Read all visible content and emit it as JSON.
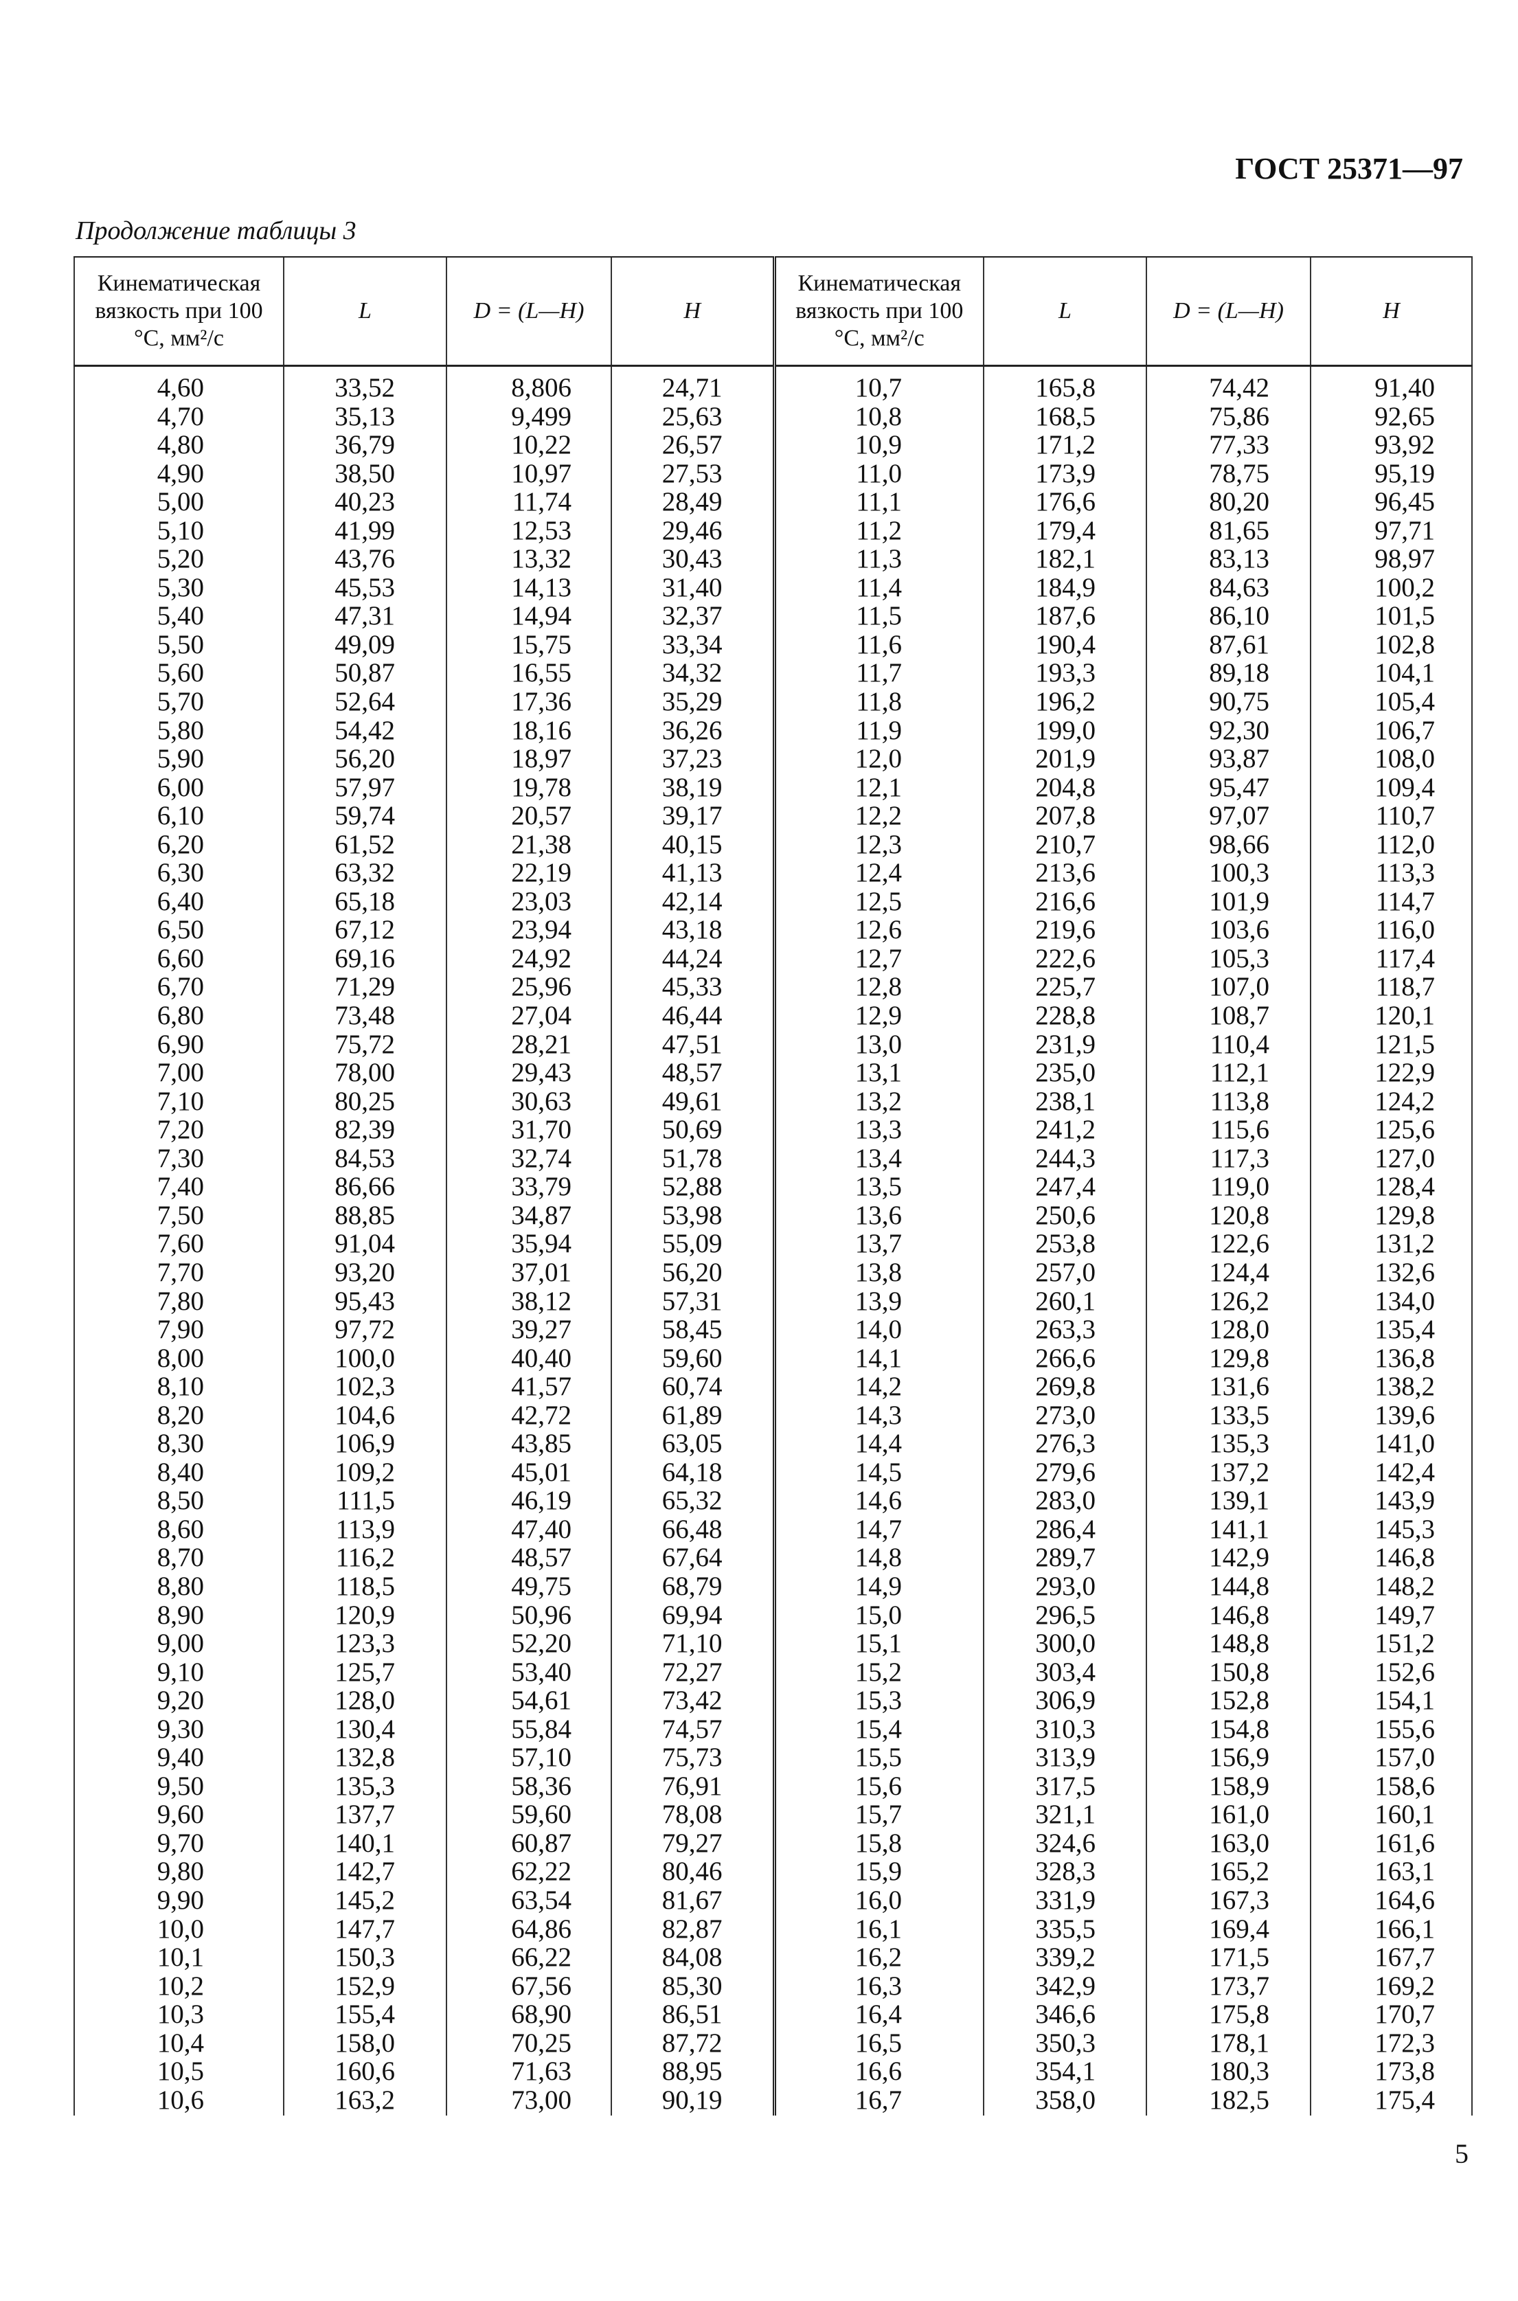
{
  "header": {
    "standard": "ГОСТ 25371—97",
    "caption": "Продолжение таблицы 3"
  },
  "table": {
    "columns": [
      "Кинематическая вязкость при 100 °С, мм²/с",
      "L",
      "D = (L—H)",
      "H",
      "Кинематическая вязкость при 100 °С, мм²/с",
      "L",
      "D = (L—H)",
      "H"
    ],
    "left_rows": [
      [
        "4,60",
        "33,52",
        "8,806",
        "24,71"
      ],
      [
        "4,70",
        "35,13",
        "9,499",
        "25,63"
      ],
      [
        "4,80",
        "36,79",
        "10,22",
        "26,57"
      ],
      [
        "4,90",
        "38,50",
        "10,97",
        "27,53"
      ],
      [
        "5,00",
        "40,23",
        "11,74",
        "28,49"
      ],
      [
        "5,10",
        "41,99",
        "12,53",
        "29,46"
      ],
      [
        "5,20",
        "43,76",
        "13,32",
        "30,43"
      ],
      [
        "5,30",
        "45,53",
        "14,13",
        "31,40"
      ],
      [
        "5,40",
        "47,31",
        "14,94",
        "32,37"
      ],
      [
        "5,50",
        "49,09",
        "15,75",
        "33,34"
      ],
      [
        "5,60",
        "50,87",
        "16,55",
        "34,32"
      ],
      [
        "5,70",
        "52,64",
        "17,36",
        "35,29"
      ],
      [
        "5,80",
        "54,42",
        "18,16",
        "36,26"
      ],
      [
        "5,90",
        "56,20",
        "18,97",
        "37,23"
      ],
      [
        "6,00",
        "57,97",
        "19,78",
        "38,19"
      ],
      [
        "6,10",
        "59,74",
        "20,57",
        "39,17"
      ],
      [
        "6,20",
        "61,52",
        "21,38",
        "40,15"
      ],
      [
        "6,30",
        "63,32",
        "22,19",
        "41,13"
      ],
      [
        "6,40",
        "65,18",
        "23,03",
        "42,14"
      ],
      [
        "6,50",
        "67,12",
        "23,94",
        "43,18"
      ],
      [
        "6,60",
        "69,16",
        "24,92",
        "44,24"
      ],
      [
        "6,70",
        "71,29",
        "25,96",
        "45,33"
      ],
      [
        "6,80",
        "73,48",
        "27,04",
        "46,44"
      ],
      [
        "6,90",
        "75,72",
        "28,21",
        "47,51"
      ],
      [
        "7,00",
        "78,00",
        "29,43",
        "48,57"
      ],
      [
        "7,10",
        "80,25",
        "30,63",
        "49,61"
      ],
      [
        "7,20",
        "82,39",
        "31,70",
        "50,69"
      ],
      [
        "7,30",
        "84,53",
        "32,74",
        "51,78"
      ],
      [
        "7,40",
        "86,66",
        "33,79",
        "52,88"
      ],
      [
        "7,50",
        "88,85",
        "34,87",
        "53,98"
      ],
      [
        "7,60",
        "91,04",
        "35,94",
        "55,09"
      ],
      [
        "7,70",
        "93,20",
        "37,01",
        "56,20"
      ],
      [
        "7,80",
        "95,43",
        "38,12",
        "57,31"
      ],
      [
        "7,90",
        "97,72",
        "39,27",
        "58,45"
      ],
      [
        "8,00",
        "100,0",
        "40,40",
        "59,60"
      ],
      [
        "8,10",
        "102,3",
        "41,57",
        "60,74"
      ],
      [
        "8,20",
        "104,6",
        "42,72",
        "61,89"
      ],
      [
        "8,30",
        "106,9",
        "43,85",
        "63,05"
      ],
      [
        "8,40",
        "109,2",
        "45,01",
        "64,18"
      ],
      [
        "8,50",
        "111,5",
        "46,19",
        "65,32"
      ],
      [
        "8,60",
        "113,9",
        "47,40",
        "66,48"
      ],
      [
        "8,70",
        "116,2",
        "48,57",
        "67,64"
      ],
      [
        "8,80",
        "118,5",
        "49,75",
        "68,79"
      ],
      [
        "8,90",
        "120,9",
        "50,96",
        "69,94"
      ],
      [
        "9,00",
        "123,3",
        "52,20",
        "71,10"
      ],
      [
        "9,10",
        "125,7",
        "53,40",
        "72,27"
      ],
      [
        "9,20",
        "128,0",
        "54,61",
        "73,42"
      ],
      [
        "9,30",
        "130,4",
        "55,84",
        "74,57"
      ],
      [
        "9,40",
        "132,8",
        "57,10",
        "75,73"
      ],
      [
        "9,50",
        "135,3",
        "58,36",
        "76,91"
      ],
      [
        "9,60",
        "137,7",
        "59,60",
        "78,08"
      ],
      [
        "9,70",
        "140,1",
        "60,87",
        "79,27"
      ],
      [
        "9,80",
        "142,7",
        "62,22",
        "80,46"
      ],
      [
        "9,90",
        "145,2",
        "63,54",
        "81,67"
      ],
      [
        "10,0",
        "147,7",
        "64,86",
        "82,87"
      ],
      [
        "10,1",
        "150,3",
        "66,22",
        "84,08"
      ],
      [
        "10,2",
        "152,9",
        "67,56",
        "85,30"
      ],
      [
        "10,3",
        "155,4",
        "68,90",
        "86,51"
      ],
      [
        "10,4",
        "158,0",
        "70,25",
        "87,72"
      ],
      [
        "10,5",
        "160,6",
        "71,63",
        "88,95"
      ],
      [
        "10,6",
        "163,2",
        "73,00",
        "90,19"
      ]
    ],
    "right_rows": [
      [
        "10,7",
        "165,8",
        "74,42",
        "91,40"
      ],
      [
        "10,8",
        "168,5",
        "75,86",
        "92,65"
      ],
      [
        "10,9",
        "171,2",
        "77,33",
        "93,92"
      ],
      [
        "11,0",
        "173,9",
        "78,75",
        "95,19"
      ],
      [
        "11,1",
        "176,6",
        "80,20",
        "96,45"
      ],
      [
        "11,2",
        "179,4",
        "81,65",
        "97,71"
      ],
      [
        "11,3",
        "182,1",
        "83,13",
        "98,97"
      ],
      [
        "11,4",
        "184,9",
        "84,63",
        "100,2"
      ],
      [
        "11,5",
        "187,6",
        "86,10",
        "101,5"
      ],
      [
        "11,6",
        "190,4",
        "87,61",
        "102,8"
      ],
      [
        "11,7",
        "193,3",
        "89,18",
        "104,1"
      ],
      [
        "11,8",
        "196,2",
        "90,75",
        "105,4"
      ],
      [
        "11,9",
        "199,0",
        "92,30",
        "106,7"
      ],
      [
        "12,0",
        "201,9",
        "93,87",
        "108,0"
      ],
      [
        "12,1",
        "204,8",
        "95,47",
        "109,4"
      ],
      [
        "12,2",
        "207,8",
        "97,07",
        "110,7"
      ],
      [
        "12,3",
        "210,7",
        "98,66",
        "112,0"
      ],
      [
        "12,4",
        "213,6",
        "100,3",
        "113,3"
      ],
      [
        "12,5",
        "216,6",
        "101,9",
        "114,7"
      ],
      [
        "12,6",
        "219,6",
        "103,6",
        "116,0"
      ],
      [
        "12,7",
        "222,6",
        "105,3",
        "117,4"
      ],
      [
        "12,8",
        "225,7",
        "107,0",
        "118,7"
      ],
      [
        "12,9",
        "228,8",
        "108,7",
        "120,1"
      ],
      [
        "13,0",
        "231,9",
        "110,4",
        "121,5"
      ],
      [
        "13,1",
        "235,0",
        "112,1",
        "122,9"
      ],
      [
        "13,2",
        "238,1",
        "113,8",
        "124,2"
      ],
      [
        "13,3",
        "241,2",
        "115,6",
        "125,6"
      ],
      [
        "13,4",
        "244,3",
        "117,3",
        "127,0"
      ],
      [
        "13,5",
        "247,4",
        "119,0",
        "128,4"
      ],
      [
        "13,6",
        "250,6",
        "120,8",
        "129,8"
      ],
      [
        "13,7",
        "253,8",
        "122,6",
        "131,2"
      ],
      [
        "13,8",
        "257,0",
        "124,4",
        "132,6"
      ],
      [
        "13,9",
        "260,1",
        "126,2",
        "134,0"
      ],
      [
        "14,0",
        "263,3",
        "128,0",
        "135,4"
      ],
      [
        "14,1",
        "266,6",
        "129,8",
        "136,8"
      ],
      [
        "14,2",
        "269,8",
        "131,6",
        "138,2"
      ],
      [
        "14,3",
        "273,0",
        "133,5",
        "139,6"
      ],
      [
        "14,4",
        "276,3",
        "135,3",
        "141,0"
      ],
      [
        "14,5",
        "279,6",
        "137,2",
        "142,4"
      ],
      [
        "14,6",
        "283,0",
        "139,1",
        "143,9"
      ],
      [
        "14,7",
        "286,4",
        "141,1",
        "145,3"
      ],
      [
        "14,8",
        "289,7",
        "142,9",
        "146,8"
      ],
      [
        "14,9",
        "293,0",
        "144,8",
        "148,2"
      ],
      [
        "15,0",
        "296,5",
        "146,8",
        "149,7"
      ],
      [
        "15,1",
        "300,0",
        "148,8",
        "151,2"
      ],
      [
        "15,2",
        "303,4",
        "150,8",
        "152,6"
      ],
      [
        "15,3",
        "306,9",
        "152,8",
        "154,1"
      ],
      [
        "15,4",
        "310,3",
        "154,8",
        "155,6"
      ],
      [
        "15,5",
        "313,9",
        "156,9",
        "157,0"
      ],
      [
        "15,6",
        "317,5",
        "158,9",
        "158,6"
      ],
      [
        "15,7",
        "321,1",
        "161,0",
        "160,1"
      ],
      [
        "15,8",
        "324,6",
        "163,0",
        "161,6"
      ],
      [
        "15,9",
        "328,3",
        "165,2",
        "163,1"
      ],
      [
        "16,0",
        "331,9",
        "167,3",
        "164,6"
      ],
      [
        "16,1",
        "335,5",
        "169,4",
        "166,1"
      ],
      [
        "16,2",
        "339,2",
        "171,5",
        "167,7"
      ],
      [
        "16,3",
        "342,9",
        "173,7",
        "169,2"
      ],
      [
        "16,4",
        "346,6",
        "175,8",
        "170,7"
      ],
      [
        "16,5",
        "350,3",
        "178,1",
        "172,3"
      ],
      [
        "16,6",
        "354,1",
        "180,3",
        "173,8"
      ],
      [
        "16,7",
        "358,0",
        "182,5",
        "175,4"
      ]
    ]
  },
  "footer": {
    "page_number": "5"
  }
}
